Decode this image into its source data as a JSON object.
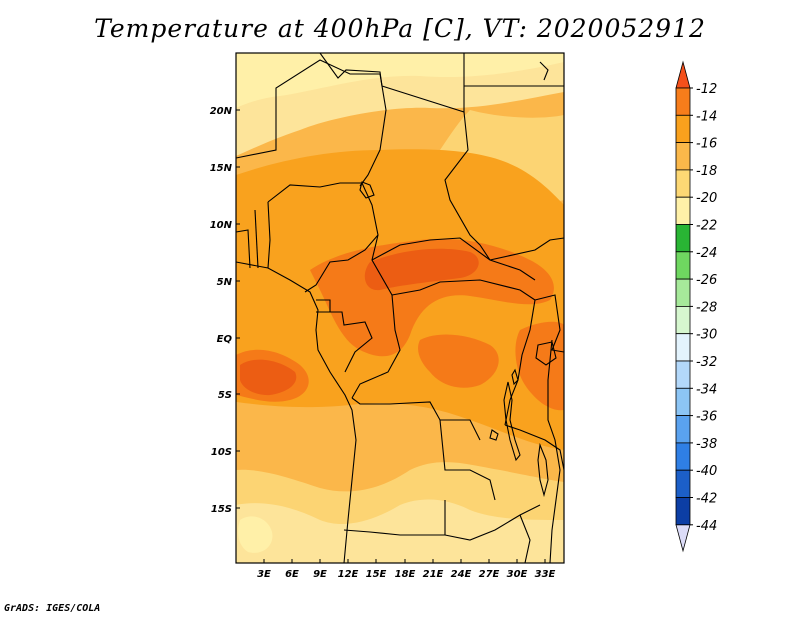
{
  "title": "Temperature at 400hPa [C], VT: 2020052912",
  "credit": "GrADS: IGES/COLA",
  "map": {
    "lat_labels": [
      "20N",
      "15N",
      "10N",
      "5N",
      "EQ",
      "5S",
      "10S",
      "15S"
    ],
    "lon_labels": [
      "3E",
      "6E",
      "9E",
      "12E",
      "15E",
      "18E",
      "21E",
      "24E",
      "27E",
      "30E",
      "33E"
    ],
    "field_colors": {
      "pale": "#fff0a8",
      "light": "#fde49a",
      "mid_light": "#fcd473",
      "mid": "#fbb74a",
      "orange": "#f9a21e",
      "deep": "#f57a18",
      "deepest": "#ec5d13"
    }
  },
  "colorbar": {
    "labels": [
      "-12",
      "-14",
      "-16",
      "-18",
      "-20",
      "-22",
      "-24",
      "-26",
      "-28",
      "-30",
      "-32",
      "-34",
      "-36",
      "-38",
      "-40",
      "-42",
      "-44"
    ],
    "colors": [
      "#f4501b",
      "#f77d1b",
      "#f9a11d",
      "#fbb84a",
      "#fdd874",
      "#fff1a8",
      "#29b534",
      "#6fd760",
      "#a6e99a",
      "#d6f7cf",
      "#e3f3fd",
      "#b3d8fa",
      "#8cc5f5",
      "#5aa2ef",
      "#2f7fe5",
      "#1c5fc8",
      "#0c3ea5",
      "#0a1f73"
    ],
    "top_arrow_color": "#f4501b",
    "bottom_arrow_color": "#dcdcf8"
  }
}
